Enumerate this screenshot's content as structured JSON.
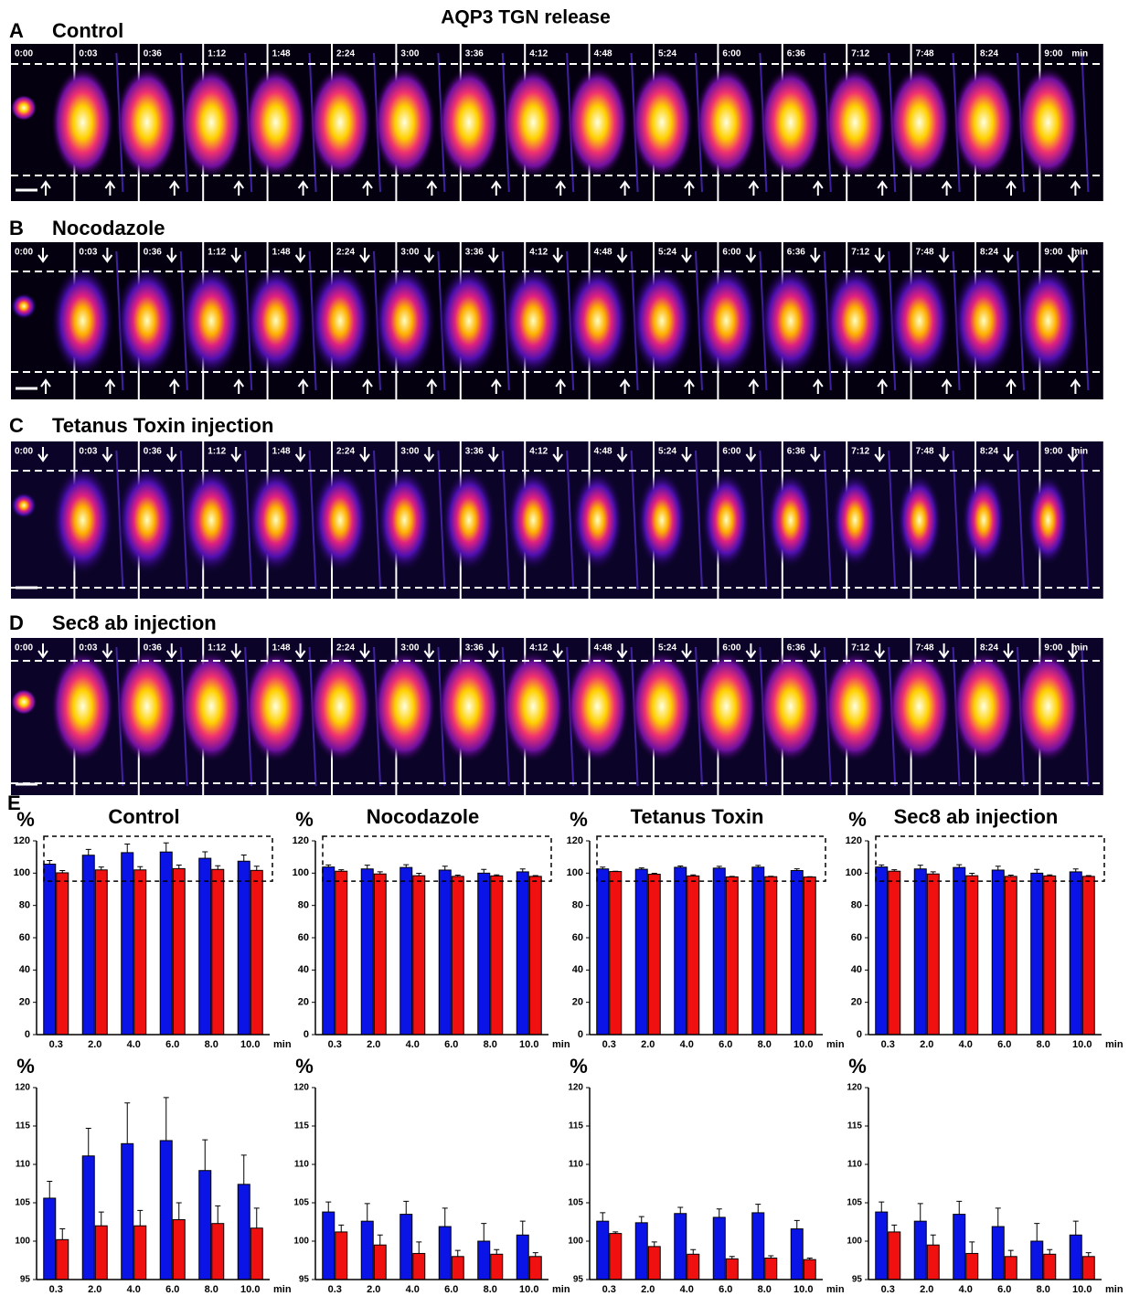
{
  "title": "AQP3 TGN release",
  "frames": [
    "0:00",
    "0:03",
    "0:36",
    "1:12",
    "1:48",
    "2:24",
    "3:00",
    "3:36",
    "4:12",
    "4:48",
    "5:24",
    "6:00",
    "6:36",
    "7:12",
    "7:48",
    "8:24",
    "9:00"
  ],
  "time_unit": "min",
  "panels": [
    {
      "letter": "A",
      "label": "Control"
    },
    {
      "letter": "B",
      "label": "Nocodazole"
    },
    {
      "letter": "C",
      "label": "Tetanus Toxin injection"
    },
    {
      "letter": "D",
      "label": "Sec8 ab injection"
    }
  ],
  "chart_panel_letter": "E",
  "chart_data": [
    {
      "type": "bar",
      "title": "Control",
      "y_label": "%",
      "x_label": "min",
      "categories": [
        "0.3",
        "2.0",
        "4.0",
        "6.0",
        "8.0",
        "10.0"
      ],
      "ylim": [
        0,
        120
      ],
      "yticks": [
        0,
        20,
        40,
        60,
        80,
        100,
        120
      ],
      "series": [
        {
          "color": "#0a14e6",
          "values": [
            105.6,
            111.1,
            112.7,
            113.1,
            109.2,
            107.4
          ],
          "errors": [
            2.2,
            3.6,
            5.3,
            5.6,
            4.0,
            3.8
          ]
        },
        {
          "color": "#f01010",
          "values": [
            100.2,
            102.0,
            102.0,
            102.8,
            102.3,
            101.7
          ],
          "errors": [
            1.4,
            1.8,
            2.0,
            2.2,
            2.3,
            2.6
          ]
        }
      ]
    },
    {
      "type": "bar",
      "title": "Nocodazole",
      "y_label": "%",
      "x_label": "min",
      "categories": [
        "0.3",
        "2.0",
        "4.0",
        "6.0",
        "8.0",
        "10.0"
      ],
      "ylim": [
        0,
        120
      ],
      "yticks": [
        0,
        20,
        40,
        60,
        80,
        100,
        120
      ],
      "series": [
        {
          "color": "#0a14e6",
          "values": [
            103.8,
            102.6,
            103.5,
            101.9,
            100.0,
            100.8
          ],
          "errors": [
            1.3,
            2.3,
            1.7,
            2.4,
            2.3,
            1.8
          ]
        },
        {
          "color": "#f01010",
          "values": [
            101.2,
            99.5,
            98.4,
            98.0,
            98.3,
            98.0
          ],
          "errors": [
            0.9,
            1.3,
            1.5,
            0.8,
            0.6,
            0.5
          ]
        }
      ]
    },
    {
      "type": "bar",
      "title": "Tetanus Toxin",
      "y_label": "%",
      "x_label": "min",
      "categories": [
        "0.3",
        "2.0",
        "4.0",
        "6.0",
        "8.0",
        "10.0"
      ],
      "ylim": [
        0,
        120
      ],
      "yticks": [
        0,
        20,
        40,
        60,
        80,
        100,
        120
      ],
      "series": [
        {
          "color": "#0a14e6",
          "values": [
            102.6,
            102.4,
            103.6,
            103.1,
            103.7,
            101.6
          ],
          "errors": [
            1.1,
            0.8,
            0.8,
            1.1,
            1.1,
            1.1
          ]
        },
        {
          "color": "#f01010",
          "values": [
            101.0,
            99.3,
            98.3,
            97.7,
            97.8,
            97.6
          ],
          "errors": [
            0.2,
            0.6,
            0.6,
            0.3,
            0.3,
            0.2
          ]
        }
      ]
    },
    {
      "type": "bar",
      "title": "Sec8 ab injection",
      "y_label": "%",
      "x_label": "min",
      "categories": [
        "0.3",
        "2.0",
        "4.0",
        "6.0",
        "8.0",
        "10.0"
      ],
      "ylim": [
        0,
        120
      ],
      "yticks": [
        0,
        20,
        40,
        60,
        80,
        100,
        120
      ],
      "series": [
        {
          "color": "#0a14e6",
          "values": [
            103.8,
            102.6,
            103.5,
            101.9,
            100.0,
            100.8
          ],
          "errors": [
            1.3,
            2.3,
            1.7,
            2.4,
            2.3,
            1.8
          ]
        },
        {
          "color": "#f01010",
          "values": [
            101.2,
            99.5,
            98.4,
            98.0,
            98.3,
            98.0
          ],
          "errors": [
            0.9,
            1.3,
            1.5,
            0.8,
            0.6,
            0.5
          ]
        }
      ]
    },
    {
      "type": "bar",
      "y_label": "%",
      "x_label": "min",
      "categories": [
        "0.3",
        "2.0",
        "4.0",
        "6.0",
        "8.0",
        "10.0"
      ],
      "ylim": [
        95,
        120
      ],
      "yticks": [
        95,
        100,
        105,
        110,
        115,
        120
      ],
      "series": [
        {
          "color": "#0a14e6",
          "values": [
            105.6,
            111.1,
            112.7,
            113.1,
            109.2,
            107.4
          ],
          "errors": [
            2.2,
            3.6,
            5.3,
            5.6,
            4.0,
            3.8
          ]
        },
        {
          "color": "#f01010",
          "values": [
            100.2,
            102.0,
            102.0,
            102.8,
            102.3,
            101.7
          ],
          "errors": [
            1.4,
            1.8,
            2.0,
            2.2,
            2.3,
            2.6
          ]
        }
      ]
    },
    {
      "type": "bar",
      "y_label": "%",
      "x_label": "min",
      "categories": [
        "0.3",
        "2.0",
        "4.0",
        "6.0",
        "8.0",
        "10.0"
      ],
      "ylim": [
        95,
        120
      ],
      "yticks": [
        95,
        100,
        105,
        110,
        115,
        120
      ],
      "series": [
        {
          "color": "#0a14e6",
          "values": [
            103.8,
            102.6,
            103.5,
            101.9,
            100.0,
            100.8
          ],
          "errors": [
            1.3,
            2.3,
            1.7,
            2.4,
            2.3,
            1.8
          ]
        },
        {
          "color": "#f01010",
          "values": [
            101.2,
            99.5,
            98.4,
            98.0,
            98.3,
            98.0
          ],
          "errors": [
            0.9,
            1.3,
            1.5,
            0.8,
            0.6,
            0.5
          ]
        }
      ]
    },
    {
      "type": "bar",
      "y_label": "%",
      "x_label": "min",
      "categories": [
        "0.3",
        "2.0",
        "4.0",
        "6.0",
        "8.0",
        "10.0"
      ],
      "ylim": [
        95,
        120
      ],
      "yticks": [
        95,
        100,
        105,
        110,
        115,
        120
      ],
      "series": [
        {
          "color": "#0a14e6",
          "values": [
            102.6,
            102.4,
            103.6,
            103.1,
            103.7,
            101.6
          ],
          "errors": [
            1.1,
            0.8,
            0.8,
            1.1,
            1.1,
            1.1
          ]
        },
        {
          "color": "#f01010",
          "values": [
            101.0,
            99.3,
            98.3,
            97.7,
            97.8,
            97.6
          ],
          "errors": [
            0.2,
            0.6,
            0.6,
            0.3,
            0.3,
            0.2
          ]
        }
      ]
    },
    {
      "type": "bar",
      "y_label": "%",
      "x_label": "min",
      "categories": [
        "0.3",
        "2.0",
        "4.0",
        "6.0",
        "8.0",
        "10.0"
      ],
      "ylim": [
        95,
        120
      ],
      "yticks": [
        95,
        100,
        105,
        110,
        115,
        120
      ],
      "series": [
        {
          "color": "#0a14e6",
          "values": [
            103.8,
            102.6,
            103.5,
            101.9,
            100.0,
            100.8
          ],
          "errors": [
            1.3,
            2.3,
            1.7,
            2.4,
            2.3,
            1.8
          ]
        },
        {
          "color": "#f01010",
          "values": [
            101.2,
            99.5,
            98.4,
            98.0,
            98.3,
            98.0
          ],
          "errors": [
            0.9,
            1.3,
            1.5,
            0.8,
            0.6,
            0.5
          ]
        }
      ]
    }
  ]
}
